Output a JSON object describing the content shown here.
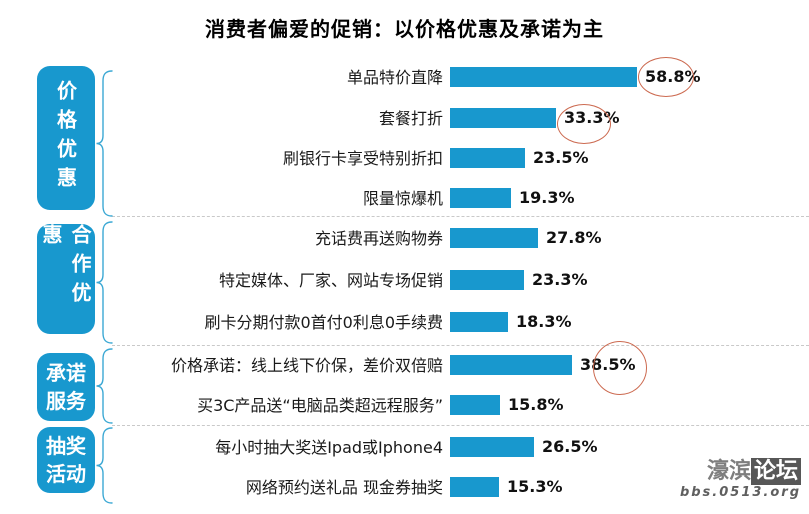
{
  "title": "消费者偏爱的促销：以价格优惠及承诺为主",
  "colors": {
    "bar": "#1898CE",
    "category_box": "#1898CE",
    "brace": "#3BA8D4",
    "highlight_circle": "#CC6A50",
    "divider": "#C9C9C9",
    "title_text": "#000000"
  },
  "chart_data": {
    "type": "bar",
    "orientation": "horizontal",
    "unit": "%",
    "title": "消费者偏爱的促销：以价格优惠及承诺为主",
    "xlim": [
      0,
      65
    ],
    "grid": false,
    "legend": "none",
    "categories": [
      "单品特价直降",
      "套餐打折",
      "刷银行卡享受特别折扣",
      "限量惊爆机",
      "充话费再送购物券",
      "特定媒体、厂家、网站专场促销",
      "刷卡分期付款0首付0利息0手续费",
      "价格承诺：线上线下价保，差价双倍赔",
      "买3C产品送“电脑品类超远程服务”",
      "每小时抽大奖送Ipad或Iphone4",
      "网络预约送礼品 现金券抽奖"
    ],
    "values": [
      58.8,
      33.3,
      23.5,
      19.3,
      27.8,
      23.3,
      18.3,
      38.5,
      15.8,
      26.5,
      15.3
    ],
    "circled_values": [
      58.8,
      33.3,
      38.5
    ],
    "groups": [
      {
        "category": "价格优惠",
        "items": [
          {
            "label": "单品特价直降",
            "value": 58.8,
            "circled": true
          },
          {
            "label": "套餐打折",
            "value": 33.3,
            "circled": true
          },
          {
            "label": "刷银行卡享受特别折扣",
            "value": 23.5,
            "circled": false
          },
          {
            "label": "限量惊爆机",
            "value": 19.3,
            "circled": false
          }
        ]
      },
      {
        "category": "合作优惠",
        "items": [
          {
            "label": "充话费再送购物券",
            "value": 27.8,
            "circled": false
          },
          {
            "label": "特定媒体、厂家、网站专场促销",
            "value": 23.3,
            "circled": false
          },
          {
            "label": "刷卡分期付款0首付0利息0手续费",
            "value": 18.3,
            "circled": false
          }
        ]
      },
      {
        "category": "承诺服务",
        "category_display": "承诺\n服务",
        "items": [
          {
            "label": "价格承诺：线上线下价保，差价双倍赔",
            "value": 38.5,
            "circled": true
          },
          {
            "label": "买3C产品送“电脑品类超远程服务”",
            "value": 15.8,
            "circled": false
          }
        ]
      },
      {
        "category": "抽奖活动",
        "category_display": "抽奖\n活动",
        "items": [
          {
            "label": "每小时抽大奖送Ipad或Iphone4",
            "value": 26.5,
            "circled": false
          },
          {
            "label": "网络预约送礼品 现金券抽奖",
            "value": 15.3,
            "circled": false
          }
        ]
      }
    ]
  },
  "watermark": {
    "site_name": "濠滨",
    "site_badge": "论坛",
    "url": "bbs.0513.org"
  }
}
